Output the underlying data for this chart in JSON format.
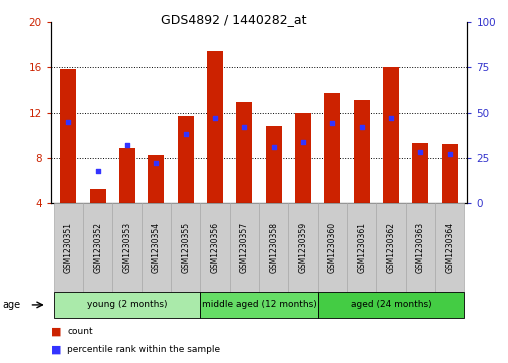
{
  "title": "GDS4892 / 1440282_at",
  "samples": [
    "GSM1230351",
    "GSM1230352",
    "GSM1230353",
    "GSM1230354",
    "GSM1230355",
    "GSM1230356",
    "GSM1230357",
    "GSM1230358",
    "GSM1230359",
    "GSM1230360",
    "GSM1230361",
    "GSM1230362",
    "GSM1230363",
    "GSM1230364"
  ],
  "counts": [
    15.8,
    5.3,
    8.9,
    8.3,
    11.7,
    17.4,
    12.9,
    10.8,
    12.0,
    13.7,
    13.1,
    16.0,
    9.3,
    9.2
  ],
  "percentiles": [
    45,
    18,
    32,
    22,
    38,
    47,
    42,
    31,
    34,
    44,
    42,
    47,
    28,
    27
  ],
  "ylim_left": [
    4,
    20
  ],
  "ylim_right": [
    0,
    100
  ],
  "bar_color": "#cc2200",
  "dot_color": "#3333ff",
  "bg_color": "#ffffff",
  "tick_color_left": "#cc2200",
  "tick_color_right": "#3333cc",
  "yticks_left": [
    4,
    8,
    12,
    16,
    20
  ],
  "yticks_right": [
    0,
    25,
    50,
    75,
    100
  ],
  "groups": [
    {
      "label": "young (2 months)",
      "start": 0,
      "end": 5,
      "color": "#aaeaaa"
    },
    {
      "label": "middle aged (12 months)",
      "start": 5,
      "end": 9,
      "color": "#66dd66"
    },
    {
      "label": "aged (24 months)",
      "start": 9,
      "end": 14,
      "color": "#44cc44"
    }
  ],
  "legend_items": [
    {
      "label": "count",
      "color": "#cc2200"
    },
    {
      "label": "percentile rank within the sample",
      "color": "#3333ff"
    }
  ],
  "bar_width": 0.55,
  "bar_bottom": 4,
  "sample_box_color": "#cccccc",
  "sample_box_edge": "#aaaaaa",
  "title_fontsize": 9,
  "tick_fontsize": 7.5,
  "label_fontsize": 7,
  "age_label": "age"
}
